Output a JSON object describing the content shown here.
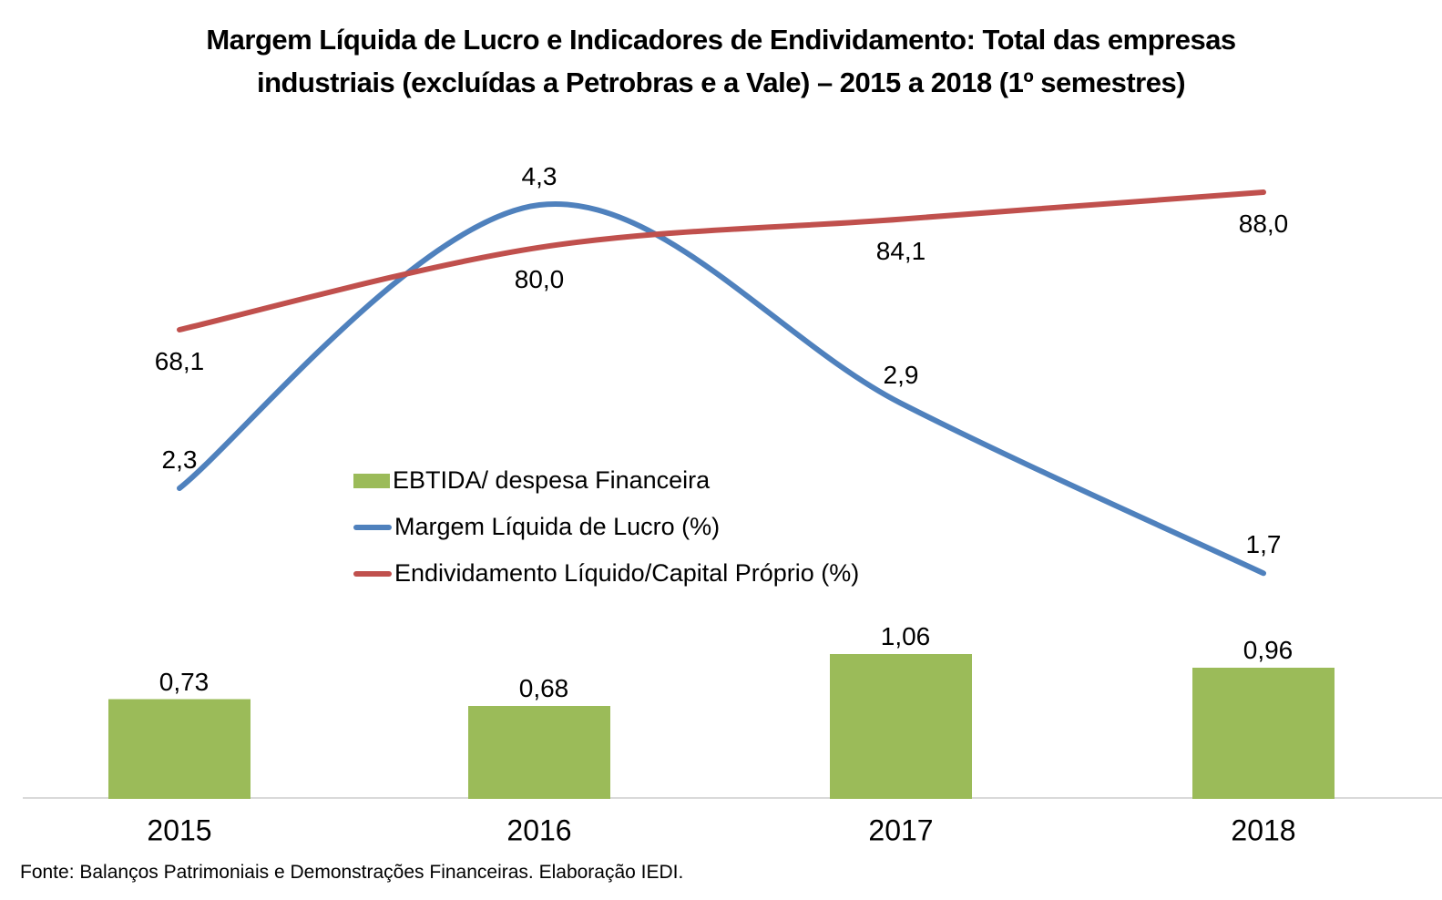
{
  "title_lines": [
    "Margem Líquida de Lucro e Indicadores de Endividamento: Total das empresas",
    "industriais (excluídas a Petrobras e a Vale) – 2015 a 2018 (1º semestres)"
  ],
  "source": "Fonte: Balanços Patrimoniais e Demonstrações Financeiras. Elaboração IEDI.",
  "colors": {
    "bar_green": "#9BBB59",
    "line_blue": "#4F81BD",
    "line_red": "#C0504D",
    "axis_gray": "#D9D9D9"
  },
  "chart_data": {
    "type": "combo",
    "title": "Margem Líquida de Lucro e Indicadores de Endividamento: Total das empresas industriais (excluídas a Petrobras e a Vale) – 2015 a 2018 (1º semestres)",
    "categories": [
      "2015",
      "2016",
      "2017",
      "2018"
    ],
    "series": [
      {
        "name": "EBTIDA/ despesa Financeira",
        "type": "bar",
        "color": "#9BBB59",
        "values": [
          0.73,
          0.68,
          1.06,
          0.96
        ],
        "labels": [
          "0,73",
          "0,68",
          "1,06",
          "0,96"
        ]
      },
      {
        "name": "Margem Líquida de Lucro (%)",
        "type": "line",
        "color": "#4F81BD",
        "values": [
          2.3,
          4.3,
          2.9,
          1.7
        ],
        "labels": [
          "2,3",
          "4,3",
          "2,9",
          "1,7"
        ]
      },
      {
        "name": "Endividamento Líquido/Capital Próprio (%)",
        "type": "line",
        "color": "#C0504D",
        "values": [
          68.1,
          80.0,
          84.1,
          88.0
        ],
        "labels": [
          "68,1",
          "80,0",
          "84,1",
          "88,0"
        ]
      }
    ],
    "xlabel": "",
    "ylabel": "",
    "grid": false,
    "y_axis_visible": false,
    "legend_position": "center-left",
    "data_labels": true
  }
}
